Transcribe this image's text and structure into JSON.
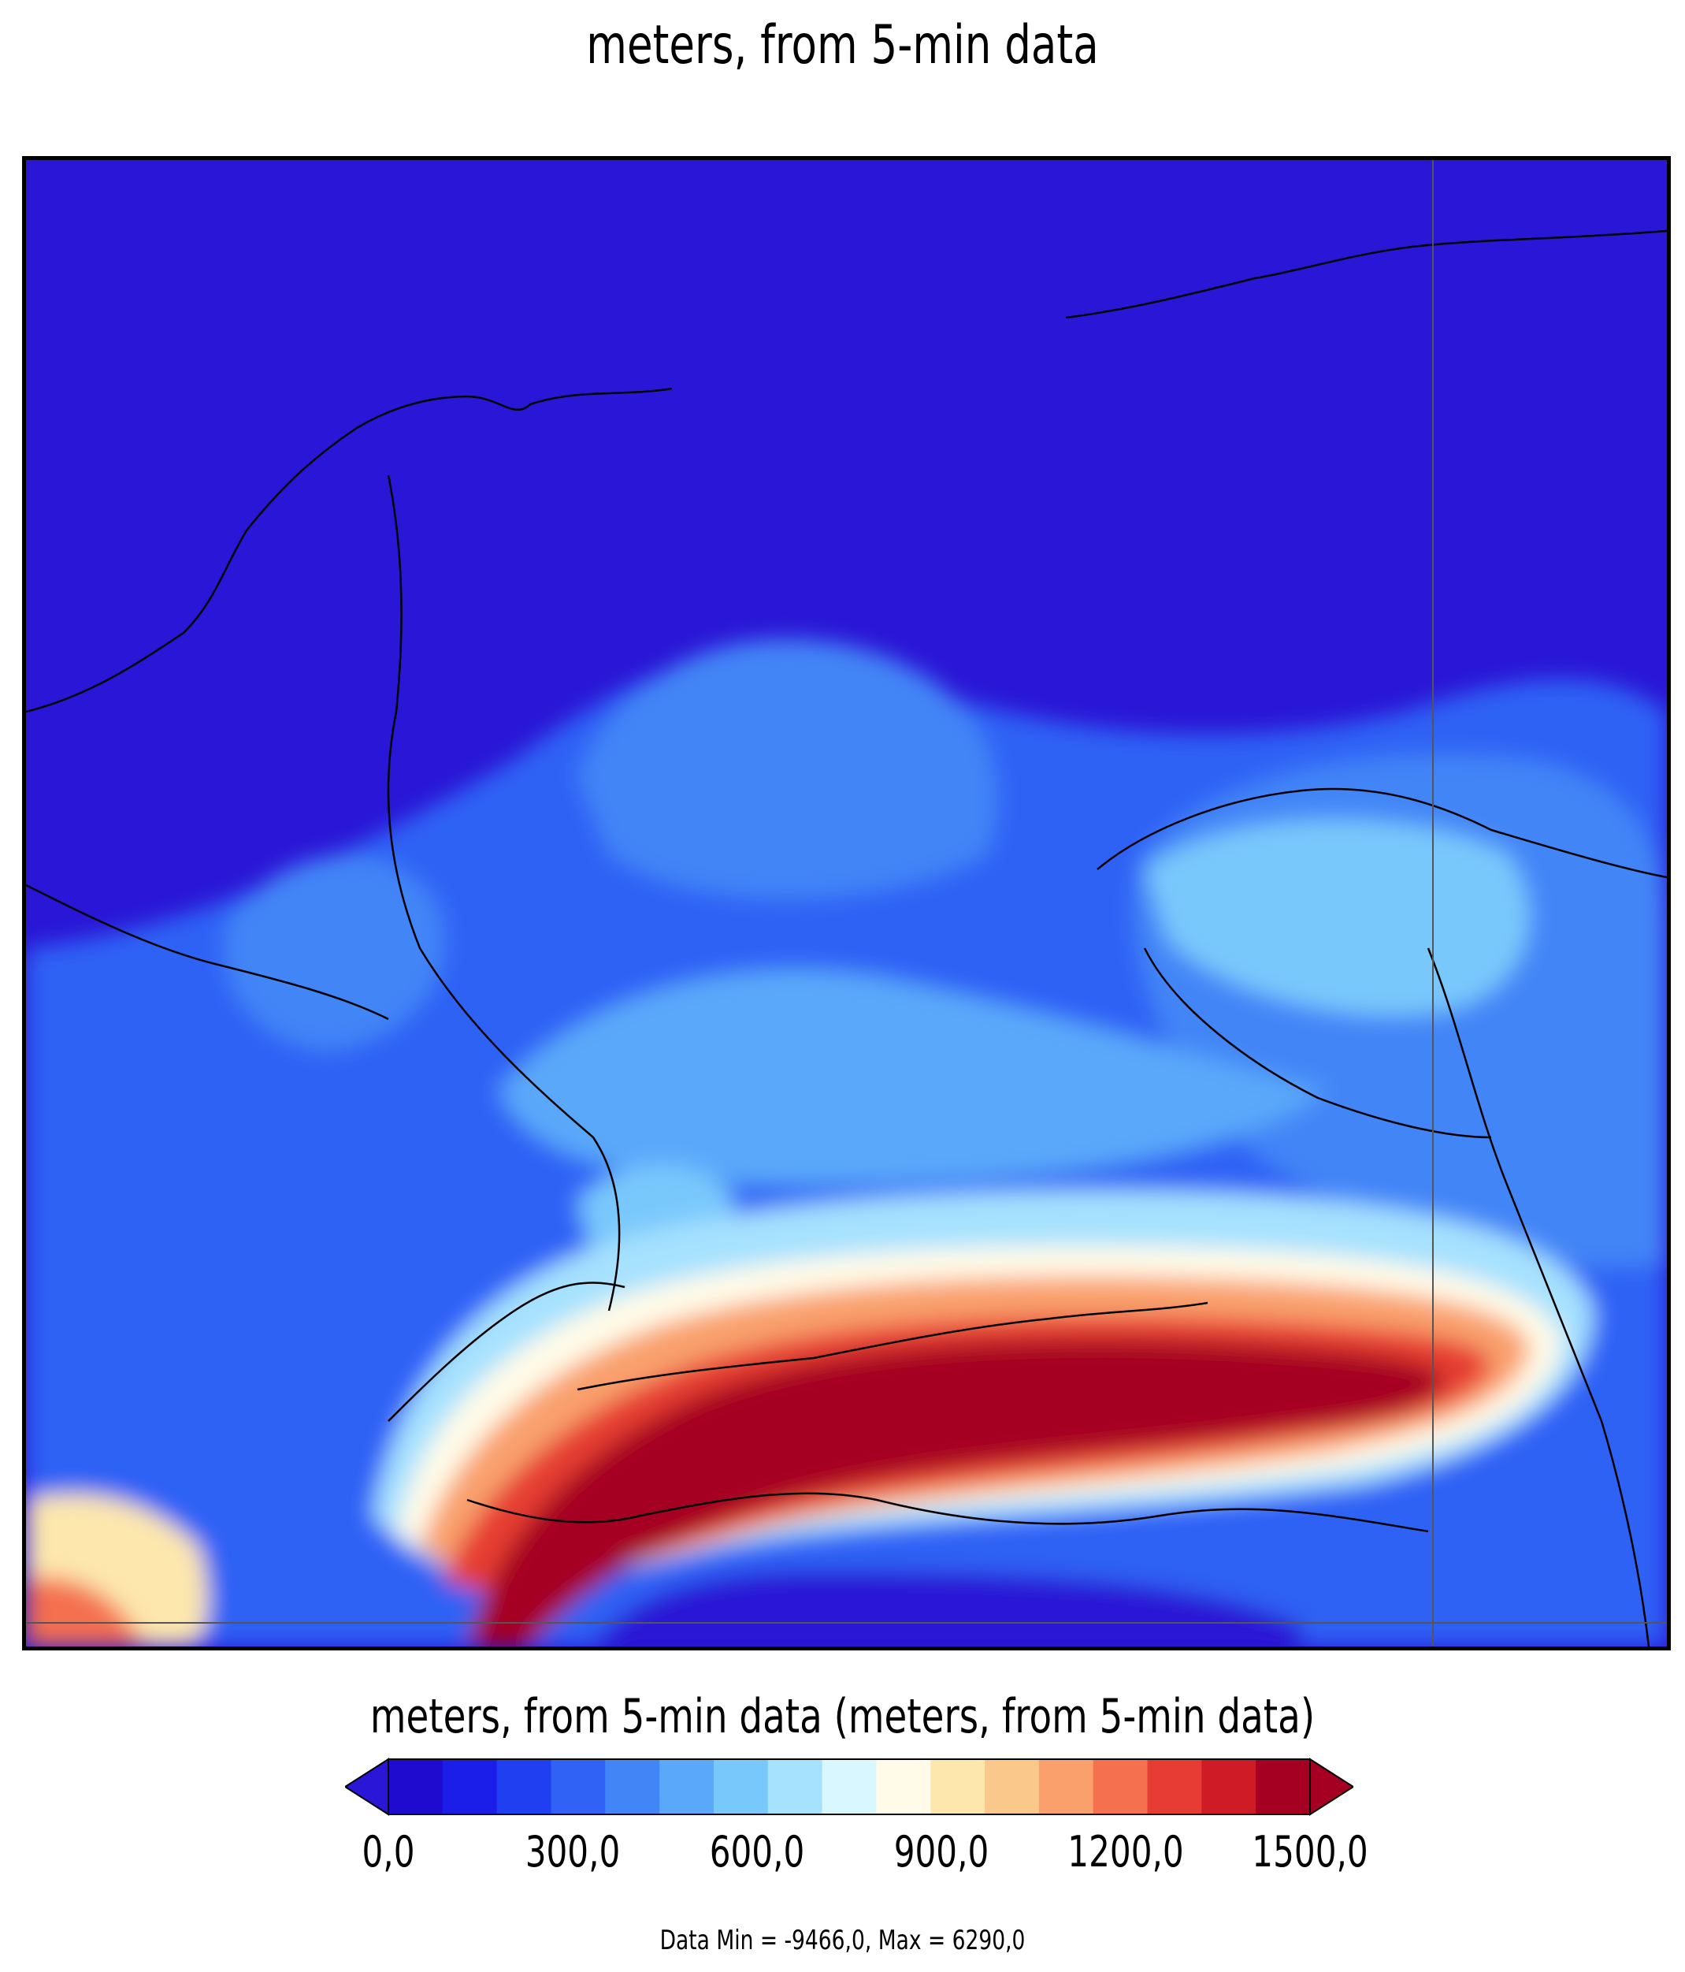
{
  "title": "meters, from 5-min data",
  "colorbar": {
    "title": "meters, from 5-min data (meters, from 5-min data)",
    "colors": [
      "#1f0ad0",
      "#1a1ee8",
      "#1f3ff0",
      "#2f62f5",
      "#4285f7",
      "#5aa8fa",
      "#79c8fc",
      "#a6e1fe",
      "#d8f7ff",
      "#fffbe8",
      "#fde7ad",
      "#fbc88b",
      "#f9a06d",
      "#f4704f",
      "#e63c33",
      "#cf1b26",
      "#a50022"
    ],
    "ticks": [
      "0,0",
      "300,0",
      "600,0",
      "900,0",
      "1200,0",
      "1500,0"
    ],
    "extend_low_color": "#2a16d6",
    "extend_high_color": "#a50022"
  },
  "data_range_text": "Data Min = -9466,0, Max = 6290,0"
}
